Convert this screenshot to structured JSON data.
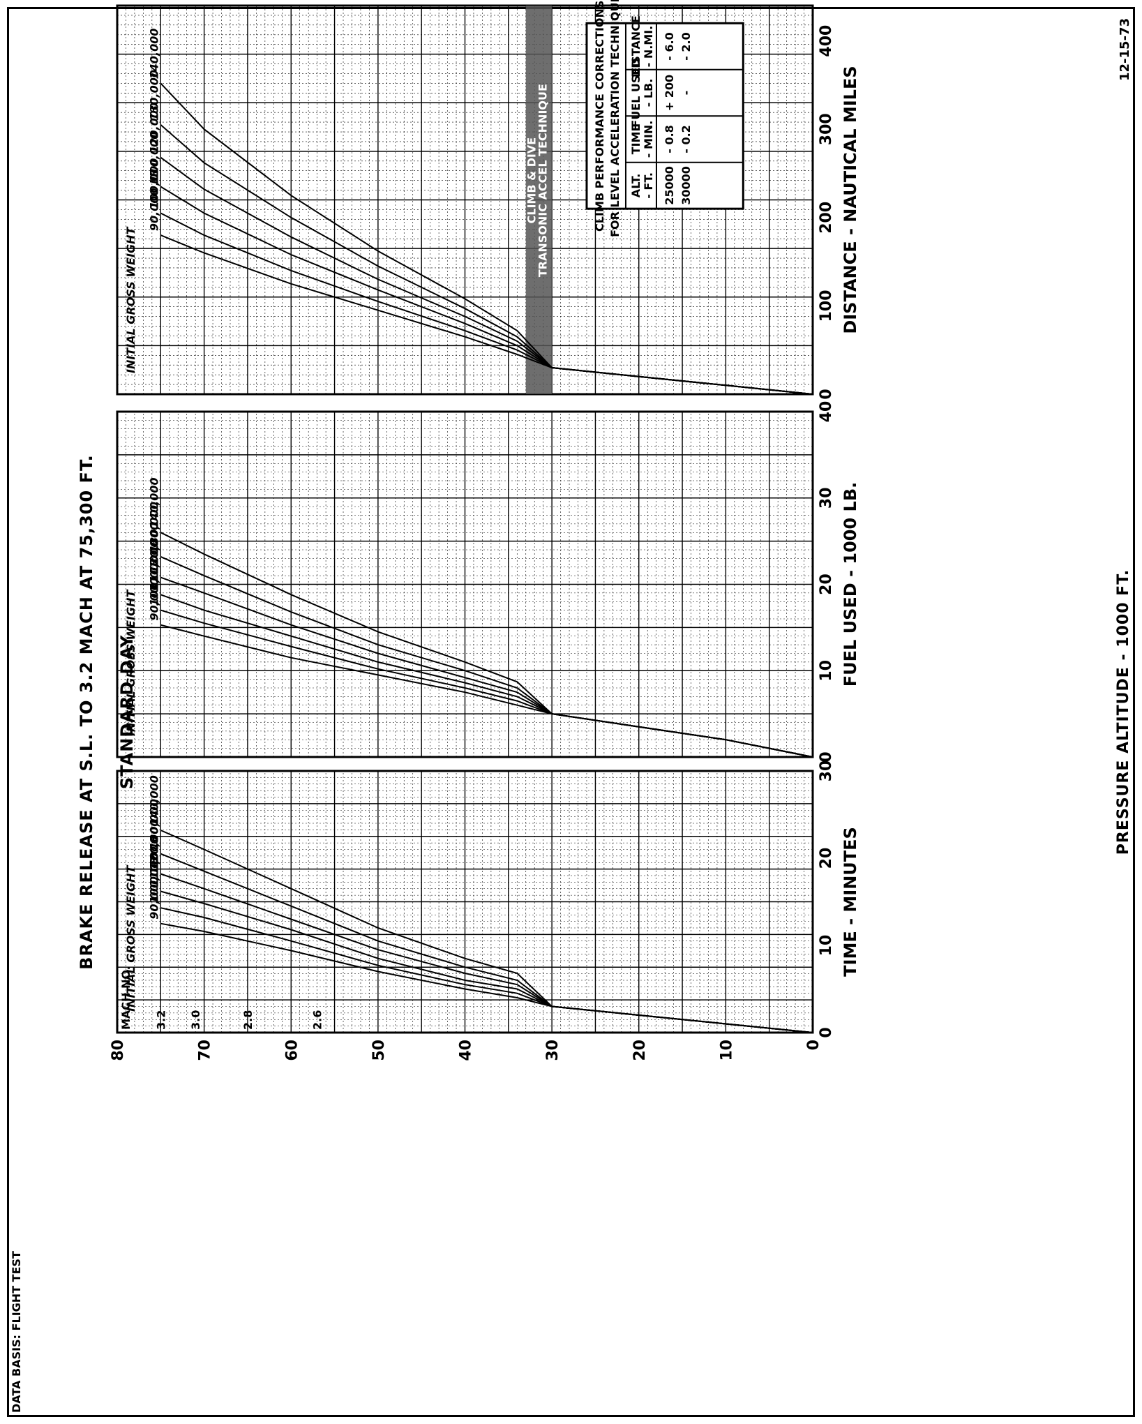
{
  "header": {
    "data_basis": "DATA BASIS: FLIGHT TEST",
    "title": "BRAKE RELEASE AT S.L. TO    3.2 MACH AT 75,300 FT.",
    "subtitle": "STANDARD DAY",
    "date": "12-15-73"
  },
  "chart_data": [
    {
      "type": "line",
      "xlabel": "TIME - MINUTES",
      "ylabel": "PRESSURE ALTITUDE - 1000 FT.",
      "xlim": [
        0,
        30
      ],
      "ylim": [
        0,
        80
      ],
      "x_ticks": [
        "0",
        "10",
        "20",
        "30"
      ],
      "y_ticks": [
        "0",
        "10",
        "20",
        "30",
        "40",
        "50",
        "60",
        "70",
        "80"
      ],
      "group_label": "INITIAL GROSS WEIGHT",
      "mach_scale": {
        "title": "MACH NO.",
        "labels": [
          "3.2",
          "3.0",
          "2.8",
          "2.6"
        ],
        "altitudes": [
          75,
          71,
          65,
          57
        ]
      },
      "series": [
        {
          "name": "90,000 LB",
          "points": [
            [
              0,
              0
            ],
            [
              1,
              10
            ],
            [
              2,
              20
            ],
            [
              3,
              30
            ],
            [
              4,
              34
            ],
            [
              5,
              40
            ],
            [
              7,
              50
            ],
            [
              9.4,
              60
            ],
            [
              11.6,
              70
            ],
            [
              12.5,
              75
            ]
          ]
        },
        {
          "name": "100,000",
          "points": [
            [
              0,
              0
            ],
            [
              1,
              10
            ],
            [
              2,
              20
            ],
            [
              3,
              30
            ],
            [
              4.5,
              34
            ],
            [
              5.5,
              40
            ],
            [
              7.7,
              50
            ],
            [
              10.5,
              60
            ],
            [
              13.2,
              70
            ],
            [
              14.3,
              75
            ]
          ]
        },
        {
          "name": "110,000",
          "points": [
            [
              0,
              0
            ],
            [
              1,
              10
            ],
            [
              2,
              20
            ],
            [
              3,
              30
            ],
            [
              5,
              34
            ],
            [
              6,
              40
            ],
            [
              8.5,
              50
            ],
            [
              11.8,
              60
            ],
            [
              14.8,
              70
            ],
            [
              16.2,
              75
            ]
          ]
        },
        {
          "name": "120,000",
          "points": [
            [
              0,
              0
            ],
            [
              1,
              10
            ],
            [
              2,
              20
            ],
            [
              3,
              30
            ],
            [
              5.5,
              34
            ],
            [
              6.8,
              40
            ],
            [
              9.5,
              50
            ],
            [
              13,
              60
            ],
            [
              16.5,
              70
            ],
            [
              18.2,
              75
            ]
          ]
        },
        {
          "name": "130,000",
          "points": [
            [
              0,
              0
            ],
            [
              1,
              10
            ],
            [
              2,
              20
            ],
            [
              3,
              30
            ],
            [
              6,
              34
            ],
            [
              7.5,
              40
            ],
            [
              10.5,
              50
            ],
            [
              14.5,
              60
            ],
            [
              18.5,
              70
            ],
            [
              20.5,
              75
            ]
          ]
        },
        {
          "name": "140,000",
          "points": [
            [
              0,
              0
            ],
            [
              1,
              10
            ],
            [
              2,
              20
            ],
            [
              3,
              30
            ],
            [
              6.8,
              34
            ],
            [
              8.5,
              40
            ],
            [
              12,
              50
            ],
            [
              16.5,
              60
            ],
            [
              21,
              70
            ],
            [
              23.2,
              75
            ]
          ]
        }
      ]
    },
    {
      "type": "line",
      "xlabel": "FUEL USED - 1000 LB.",
      "ylabel": "PRESSURE ALTITUDE - 1000 FT.",
      "xlim": [
        0,
        40
      ],
      "ylim": [
        0,
        80
      ],
      "x_ticks": [
        "0",
        "10",
        "20",
        "30",
        "40"
      ],
      "y_ticks": [
        "0",
        "10",
        "20",
        "30",
        "40",
        "50",
        "60",
        "70",
        "80"
      ],
      "group_label": "INITIAL GROSS WEIGHT",
      "series": [
        {
          "name": "90,000 LB",
          "points": [
            [
              0,
              0
            ],
            [
              2,
              10
            ],
            [
              3.5,
              20
            ],
            [
              5,
              30
            ],
            [
              6,
              34
            ],
            [
              7.5,
              40
            ],
            [
              9.5,
              50
            ],
            [
              11.5,
              60
            ],
            [
              14,
              70
            ],
            [
              15.3,
              75
            ]
          ]
        },
        {
          "name": "100,000",
          "points": [
            [
              0,
              0
            ],
            [
              2,
              10
            ],
            [
              3.5,
              20
            ],
            [
              5,
              30
            ],
            [
              6.5,
              34
            ],
            [
              8,
              40
            ],
            [
              10.2,
              50
            ],
            [
              12.8,
              60
            ],
            [
              15.5,
              70
            ],
            [
              17,
              75
            ]
          ]
        },
        {
          "name": "110,000",
          "points": [
            [
              0,
              0
            ],
            [
              2,
              10
            ],
            [
              3.5,
              20
            ],
            [
              5,
              30
            ],
            [
              7,
              34
            ],
            [
              8.6,
              40
            ],
            [
              11,
              50
            ],
            [
              14,
              60
            ],
            [
              17,
              70
            ],
            [
              18.8,
              75
            ]
          ]
        },
        {
          "name": "120,000",
          "points": [
            [
              0,
              0
            ],
            [
              2,
              10
            ],
            [
              3.5,
              20
            ],
            [
              5,
              30
            ],
            [
              7.5,
              34
            ],
            [
              9.2,
              40
            ],
            [
              12,
              50
            ],
            [
              15.3,
              60
            ],
            [
              19,
              70
            ],
            [
              20.8,
              75
            ]
          ]
        },
        {
          "name": "130,000",
          "points": [
            [
              0,
              0
            ],
            [
              2,
              10
            ],
            [
              3.5,
              20
            ],
            [
              5,
              30
            ],
            [
              8,
              34
            ],
            [
              10,
              40
            ],
            [
              13,
              50
            ],
            [
              16.8,
              60
            ],
            [
              21,
              70
            ],
            [
              23.2,
              75
            ]
          ]
        },
        {
          "name": "140,000",
          "points": [
            [
              0,
              0
            ],
            [
              2,
              10
            ],
            [
              3.5,
              20
            ],
            [
              5,
              30
            ],
            [
              8.7,
              34
            ],
            [
              11,
              40
            ],
            [
              14.5,
              50
            ],
            [
              18.8,
              60
            ],
            [
              23.5,
              70
            ],
            [
              26,
              75
            ]
          ]
        }
      ]
    },
    {
      "type": "line",
      "xlabel": "DISTANCE - NAUTICAL MILES",
      "ylabel": "PRESSURE ALTITUDE - 1000 FT.",
      "xlim": [
        0,
        440
      ],
      "ylim": [
        0,
        80
      ],
      "x_ticks": [
        "0",
        "100",
        "200",
        "300",
        "400"
      ],
      "y_ticks": [
        "0",
        "10",
        "20",
        "30",
        "40",
        "50",
        "60",
        "70",
        "80"
      ],
      "group_label": "INITIAL GROSS WEIGHT",
      "band": {
        "label_1": "CLIMB & DIVE",
        "label_2": "TRANSONIC ACCEL TECHNIQUE",
        "y_range": [
          30,
          33
        ]
      },
      "series": [
        {
          "name": "90,000 LB",
          "points": [
            [
              0,
              0
            ],
            [
              10,
              10
            ],
            [
              20,
              20
            ],
            [
              30,
              30
            ],
            [
              45,
              34
            ],
            [
              65,
              40
            ],
            [
              95,
              50
            ],
            [
              125,
              60
            ],
            [
              160,
              70
            ],
            [
              180,
              75
            ]
          ]
        },
        {
          "name": "100,000",
          "points": [
            [
              0,
              0
            ],
            [
              10,
              10
            ],
            [
              20,
              20
            ],
            [
              30,
              30
            ],
            [
              50,
              34
            ],
            [
              72,
              40
            ],
            [
              105,
              50
            ],
            [
              140,
              60
            ],
            [
              180,
              70
            ],
            [
              205,
              75
            ]
          ]
        },
        {
          "name": "110,000",
          "points": [
            [
              0,
              0
            ],
            [
              10,
              10
            ],
            [
              20,
              20
            ],
            [
              30,
              30
            ],
            [
              55,
              34
            ],
            [
              80,
              40
            ],
            [
              118,
              50
            ],
            [
              158,
              60
            ],
            [
              205,
              70
            ],
            [
              235,
              75
            ]
          ]
        },
        {
          "name": "120,000",
          "points": [
            [
              0,
              0
            ],
            [
              10,
              10
            ],
            [
              20,
              20
            ],
            [
              30,
              30
            ],
            [
              60,
              34
            ],
            [
              88,
              40
            ],
            [
              130,
              50
            ],
            [
              178,
              60
            ],
            [
              232,
              70
            ],
            [
              268,
              75
            ]
          ]
        },
        {
          "name": "130,000",
          "points": [
            [
              0,
              0
            ],
            [
              10,
              10
            ],
            [
              20,
              20
            ],
            [
              30,
              30
            ],
            [
              65,
              34
            ],
            [
              97,
              40
            ],
            [
              145,
              50
            ],
            [
              200,
              60
            ],
            [
              262,
              70
            ],
            [
              305,
              75
            ]
          ]
        },
        {
          "name": "140,000",
          "points": [
            [
              0,
              0
            ],
            [
              10,
              10
            ],
            [
              20,
              20
            ],
            [
              30,
              30
            ],
            [
              72,
              34
            ],
            [
              108,
              40
            ],
            [
              162,
              50
            ],
            [
              225,
              60
            ],
            [
              300,
              70
            ],
            [
              352,
              75
            ]
          ]
        }
      ],
      "corrections_table": {
        "title_1": "CLIMB   PERFORMANCE   CORRECTIONS",
        "title_2": "FOR  LEVEL  ACCELERATION  TECHNIQUE",
        "headers": [
          [
            "ALT.",
            "- FT."
          ],
          [
            "TIME",
            "- MIN."
          ],
          [
            "FUEL USED",
            "- LB."
          ],
          [
            "DISTANCE",
            "- N.MI."
          ]
        ],
        "rows": [
          [
            "25000",
            "- 0.8",
            "+ 200",
            "- 6.0"
          ],
          [
            "30000",
            "- 0.2",
            "-",
            "- 2.0"
          ]
        ]
      }
    }
  ]
}
